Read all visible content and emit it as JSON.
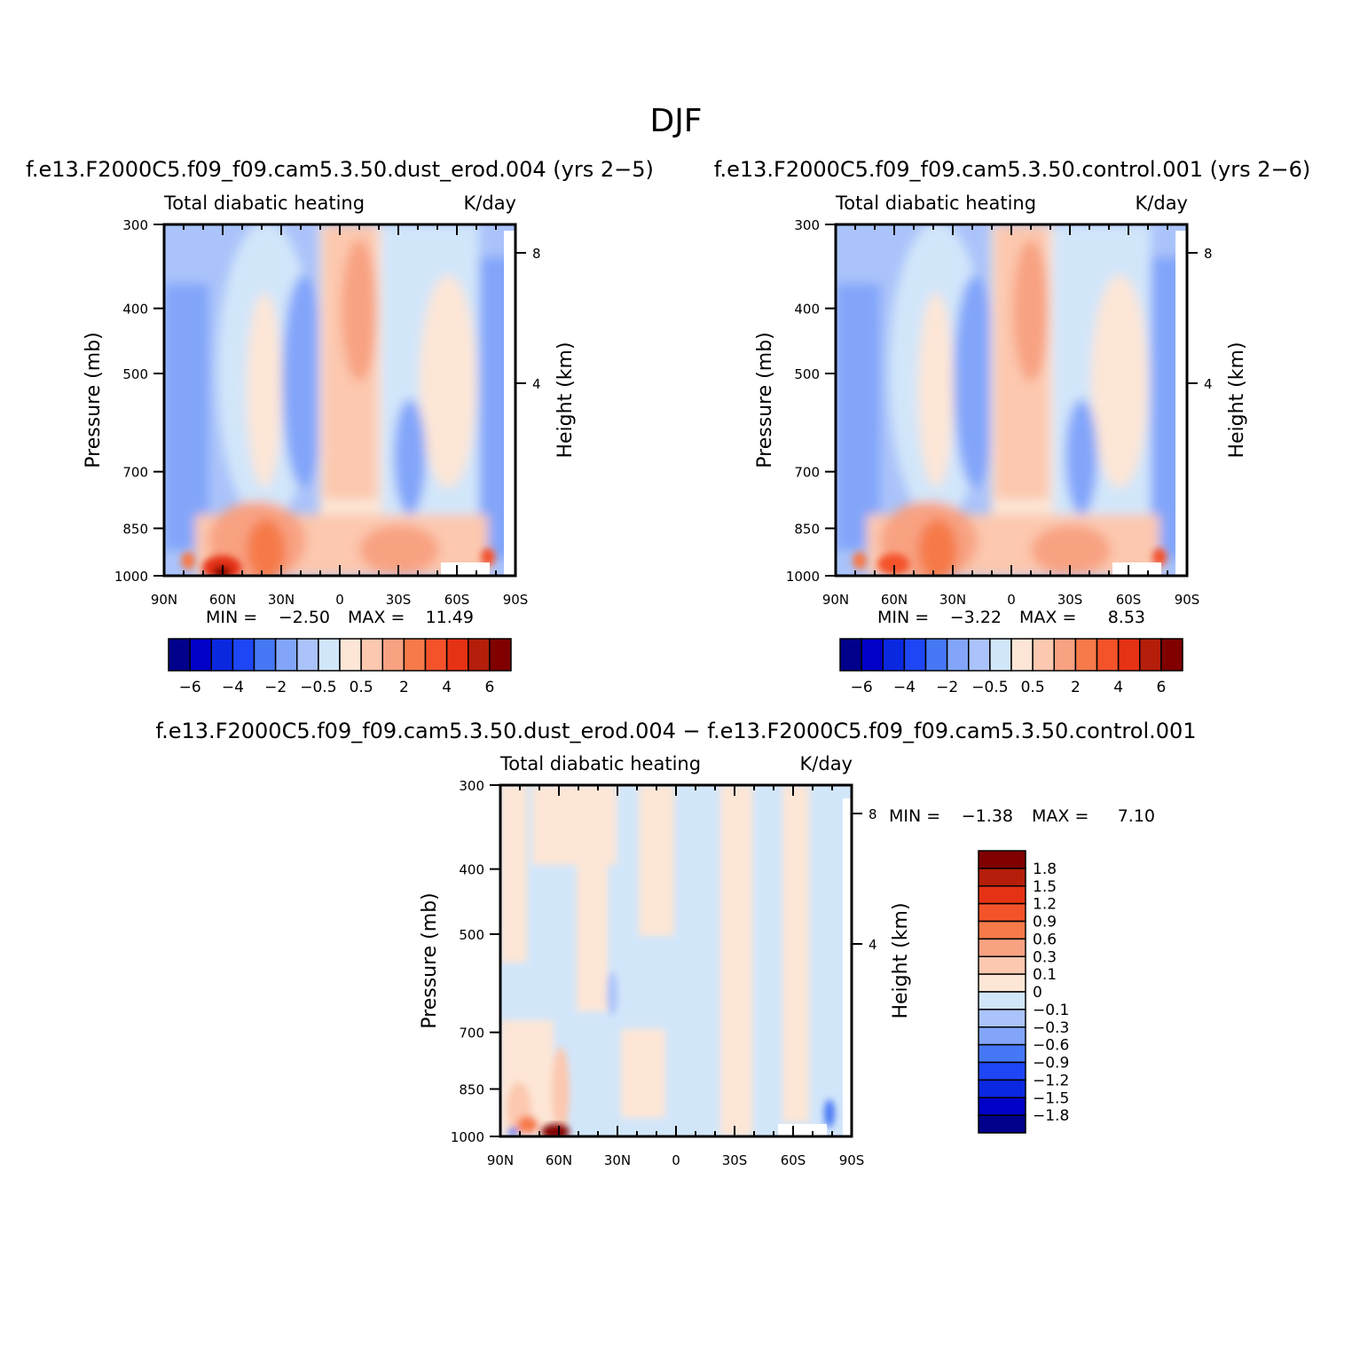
{
  "figure": {
    "title": "DJF"
  },
  "colors": {
    "scale": [
      "#00008b",
      "#0000c8",
      "#0a28e0",
      "#1e46f5",
      "#4678f5",
      "#82a5fa",
      "#aac3fa",
      "#d2e6fa",
      "#fde6d6",
      "#fcc8af",
      "#f8a282",
      "#f67a4a",
      "#f4532a",
      "#e63214",
      "#b41e0a",
      "#800000"
    ]
  },
  "chart_data": [
    {
      "id": "panel-dust",
      "type": "heatmap",
      "case_title": "f.e13.F2000C5.f09_f09.cam5.3.50.dust_erod.004 (yrs 2-5)",
      "left_title": "Total diabatic heating",
      "right_title": "K/day",
      "ylabel": "Pressure (mb)",
      "right_ylabel": "Height (km)",
      "x_tick_labels": [
        "90N",
        "60N",
        "30N",
        "0",
        "30S",
        "60S",
        "90S"
      ],
      "y_tick_labels": [
        "300",
        "400",
        "500",
        "700",
        "850",
        "1000"
      ],
      "y_ticks": [
        300,
        400,
        500,
        700,
        850,
        1000
      ],
      "right_tick_labels": [
        "8",
        "4"
      ],
      "min_label": "MIN =",
      "min_value": "-2.50",
      "max_label": "MAX =",
      "max_value": "11.49",
      "colorbar_labels": [
        "-6",
        "-4",
        "-2",
        "-0.5",
        "0.5",
        "2",
        "4",
        "6"
      ],
      "lat_range": [
        90,
        -90
      ],
      "ylim": [
        300,
        1000
      ]
    },
    {
      "id": "panel-control",
      "type": "heatmap",
      "case_title": "f.e13.F2000C5.f09_f09.cam5.3.50.control.001 (yrs 2-6)",
      "left_title": "Total diabatic heating",
      "right_title": "K/day",
      "ylabel": "Pressure (mb)",
      "right_ylabel": "Height (km)",
      "x_tick_labels": [
        "90N",
        "60N",
        "30N",
        "0",
        "30S",
        "60S",
        "90S"
      ],
      "y_tick_labels": [
        "300",
        "400",
        "500",
        "700",
        "850",
        "1000"
      ],
      "y_ticks": [
        300,
        400,
        500,
        700,
        850,
        1000
      ],
      "right_tick_labels": [
        "8",
        "4"
      ],
      "min_label": "MIN =",
      "min_value": "-3.22",
      "max_label": "MAX =",
      "max_value": "8.53",
      "colorbar_labels": [
        "-6",
        "-4",
        "-2",
        "-0.5",
        "0.5",
        "2",
        "4",
        "6"
      ],
      "lat_range": [
        90,
        -90
      ],
      "ylim": [
        300,
        1000
      ]
    },
    {
      "id": "panel-diff",
      "type": "heatmap",
      "case_title": "f.e13.F2000C5.f09_f09.cam5.3.50.dust_erod.004 - f.e13.F2000C5.f09_f09.cam5.3.50.control.001",
      "left_title": "Total diabatic heating",
      "right_title": "K/day",
      "ylabel": "Pressure (mb)",
      "right_ylabel": "Height (km)",
      "x_tick_labels": [
        "90N",
        "60N",
        "30N",
        "0",
        "30S",
        "60S",
        "90S"
      ],
      "y_tick_labels": [
        "300",
        "400",
        "500",
        "700",
        "850",
        "1000"
      ],
      "y_ticks": [
        300,
        400,
        500,
        700,
        850,
        1000
      ],
      "right_tick_labels": [
        "8",
        "4"
      ],
      "min_label": "MIN =",
      "min_value": "-1.38",
      "max_label": "MAX =",
      "max_value": "7.10",
      "colorbar_labels": [
        "1.8",
        "1.5",
        "1.2",
        "0.9",
        "0.6",
        "0.3",
        "0.1",
        "0",
        "-0.1",
        "-0.3",
        "-0.6",
        "-0.9",
        "-1.2",
        "-1.5",
        "-1.8"
      ],
      "lat_range": [
        90,
        -90
      ],
      "ylim": [
        300,
        1000
      ]
    }
  ]
}
